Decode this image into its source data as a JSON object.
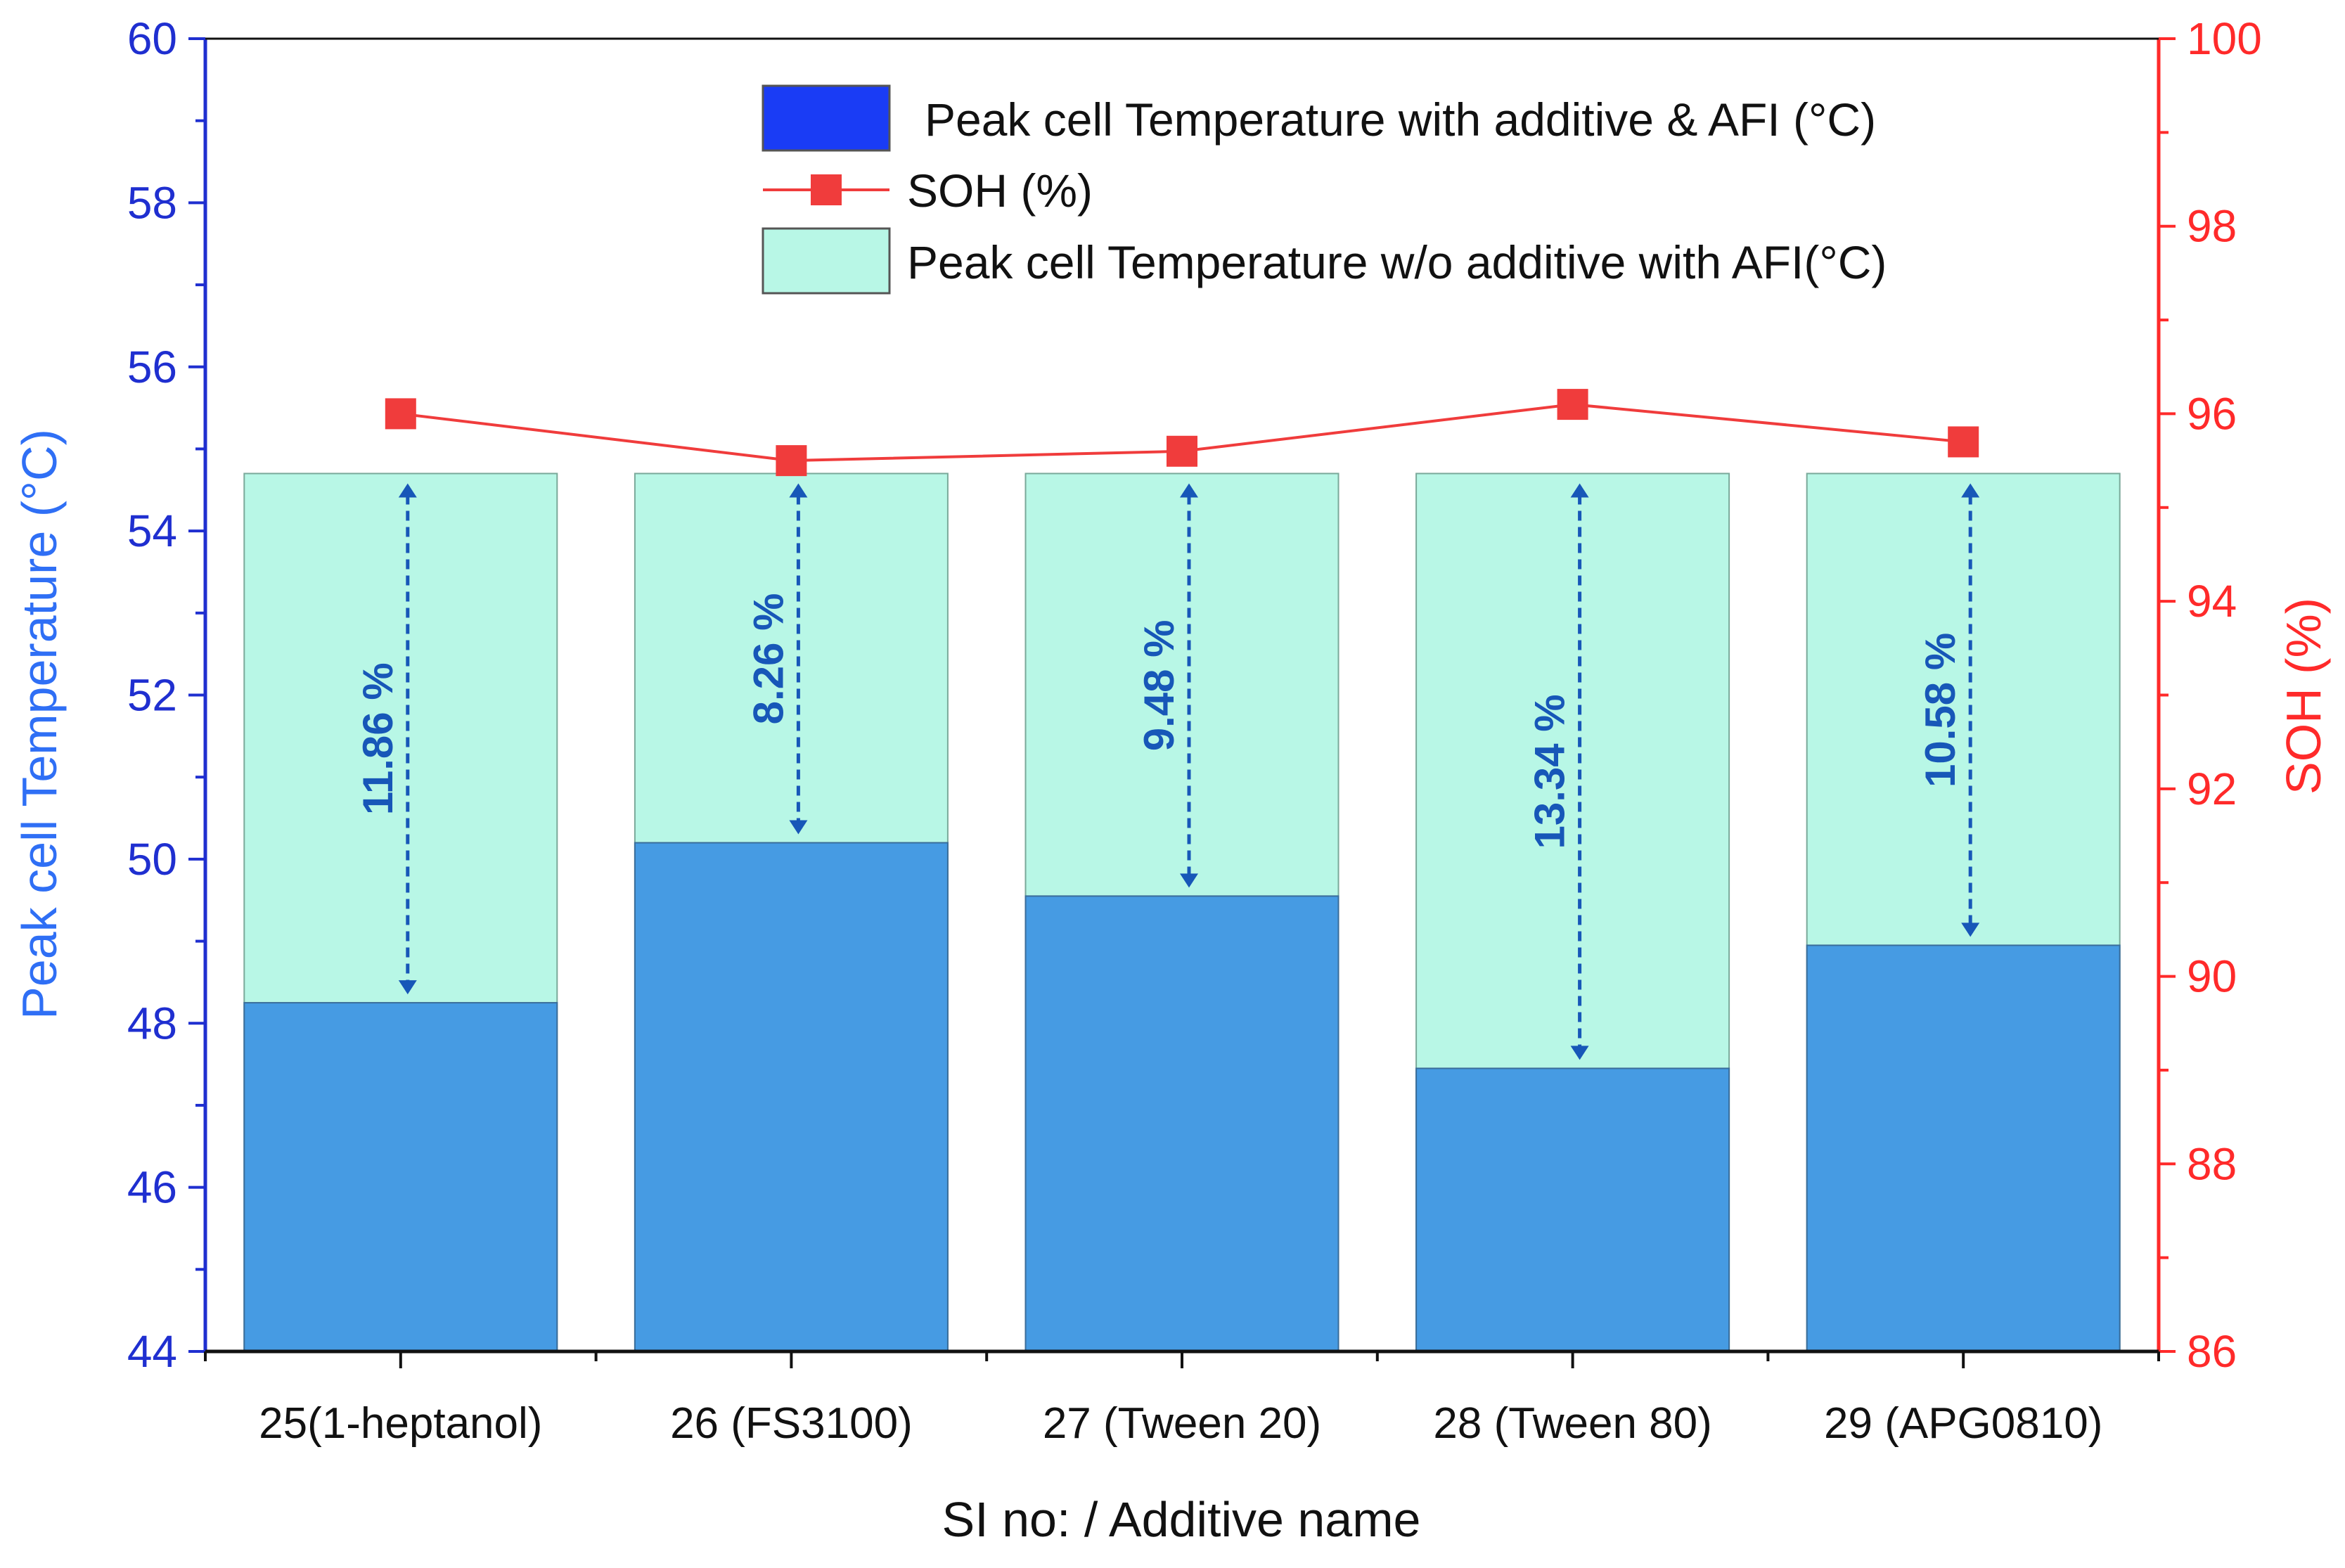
{
  "chart_data": {
    "type": "bar",
    "categories": [
      "25(1-heptanol)",
      "26 (FS3100)",
      "27 (Tween 20)",
      "28 (Tween 80)",
      "29 (APG0810)"
    ],
    "series": [
      {
        "name": "Peak cell Temperature w/o additive with AFI(°C)",
        "type": "bar",
        "axis": "left",
        "color": "#b8f7e6",
        "values": [
          54.7,
          54.7,
          54.7,
          54.7,
          54.7
        ]
      },
      {
        "name": "Peak cell Temperature with additive & AFI (°C)",
        "type": "bar",
        "axis": "left",
        "color": "#469be3",
        "legend_color": "#1a3cf5",
        "values": [
          48.25,
          50.2,
          49.55,
          47.45,
          48.95
        ]
      },
      {
        "name": "SOH (%)",
        "type": "line",
        "axis": "right",
        "color": "#f03c3c",
        "values": [
          96.0,
          95.5,
          95.6,
          96.1,
          95.7
        ]
      }
    ],
    "annotations": [
      "11.86 %",
      "8.26 %",
      "9.48 %",
      "13.34 %",
      "10.58 %"
    ],
    "xlabel": "SI no: / Additive name",
    "ylabel": "Peak cell Temperature (°C)",
    "y2label": "SOH (%)",
    "ylim": [
      44,
      60
    ],
    "y2lim": [
      86,
      100
    ],
    "yticks": [
      "44",
      "46",
      "48",
      "50",
      "52",
      "54",
      "56",
      "58",
      "60"
    ],
    "y2ticks": [
      "86",
      "88",
      "90",
      "92",
      "94",
      "96",
      "98",
      "100"
    ],
    "grid": false,
    "legend_position": "top-right",
    "colors": {
      "left_axis": "#1f2fd0",
      "right_axis": "#ff2a2a",
      "annotation": "#1757b8"
    }
  }
}
